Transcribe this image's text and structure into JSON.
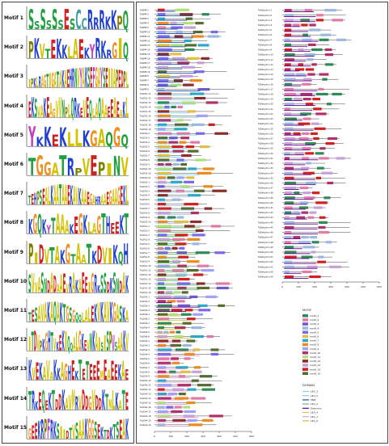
{
  "motif_logos": [
    {
      "label": "Motif 1",
      "text": "SSSSSSESCCRRRKKPQ"
    },
    {
      "label": "Motif 2",
      "text": "PKVTEKKLAEKYRKRGIQ"
    },
    {
      "label": "Motif 3",
      "text": "IPKLRAGTIGATAKAEHRNVYAKSEFGAYSEIIAPEDPL"
    },
    {
      "label": "Motif 4",
      "text": "EKSVAKEAGVVNPLQRKEVEQLAQAAEEAEAKL"
    },
    {
      "label": "Motif 5",
      "text": "YKKEKLLKGAQGQ"
    },
    {
      "label": "Motif 6",
      "text": "TGGATRPVEPINV"
    },
    {
      "label": "Motif 7",
      "text": "TEHPSEALKAATAAEKAVKAAEGAHRAAEGAAGEKL"
    },
    {
      "label": "Motif 8",
      "text": "KGQKYTAAAKEGKLAGTHEEKT"
    },
    {
      "label": "Motif 9",
      "text": "PIDVTAKGTAATKDVIKQH"
    },
    {
      "label": "Motif 10",
      "text": "SVVASNDADAAEVRAKAEEIGRKSSDKSNDAK"
    },
    {
      "label": "Motif 11",
      "text": "TESAVAKAQAKTGSGQQLALEKVKAVKGASKA"
    },
    {
      "label": "Motif 12",
      "text": "ITDVPKGHTVKEKIQQALGKEVNKAISISPWSAAKV"
    },
    {
      "label": "Motif 13",
      "text": "KVEKAVAKKAGHEKTETEEEMEAEEKAE"
    },
    {
      "label": "Motif 14",
      "text": "TRKEQEKTDDKAVMRVDDGVDDKTMLKATE"
    },
    {
      "label": "Motif 15",
      "text": "GEEKRPFRKSIIDTVSAAKGGSEKTDKTSEAK"
    }
  ],
  "left_gene_names": [
    "TaSMP-1",
    "TaSMP-2",
    "TaSMP-3",
    "TaSMP-4",
    "TaSMP-5",
    "TaSMP-10",
    "TaSMP-11",
    "TaSMP-12",
    "TaSMP-13",
    "TaSMP-14",
    "TaSMP-15",
    "TaSMP-16",
    "TaSMP-17",
    "TaSMP-18",
    "TaSMP-19",
    "TaSMP-6",
    "TaSMP-7",
    "TaSMP-8",
    "TaSMP-9",
    "TaLEA2-11",
    "TaLEA2-12",
    "TaLEA2-13",
    "TaLEA2-14",
    "TaLEA2-15",
    "TaLEA2-16",
    "TaLEA2-17",
    "TaLEA2-18",
    "TaLEA2-19",
    "TaLEA2-2",
    "TaLEA2-3",
    "TaLEA2-4",
    "TaLEA2-5",
    "TaLEA2-6",
    "TaLEA2-7",
    "TaLEA2-8",
    "TaLEA2-9",
    "TaLEA2-10",
    "TaLEA2-20",
    "TaLEA2-21",
    "TaLEA3-1",
    "TaLEA3-2",
    "TaLEA3-3",
    "TaLEA3-4",
    "TaLEA3-5",
    "TaLEA3-6",
    "TaLEA3-7",
    "TaLEA3-8",
    "TaLEA3-9",
    "TaLEA3-10",
    "TaLEA1-1",
    "TaLEA1-2",
    "TaLEA1-3",
    "TaLEA1-4",
    "TaLEA1-5",
    "TaLEA1-6",
    "TaLEA1-7",
    "TaLEA1-8",
    "TaLEA1-9",
    "TaLEA1-10",
    "TaLEA1-11",
    "TaLEA1-12",
    "TaLEA1-13",
    "TaLEA1-14",
    "TaLEA1-15",
    "TaLEA1-16",
    "TaLEA5-1",
    "TaLEA5-2",
    "TaLEA5-3",
    "TaLEA5-4",
    "TaLEA6-1",
    "TaLEA6-2",
    "TaLEA6-3",
    "TaLEA6-4",
    "TaLEA6-5",
    "TaLEA6-6",
    "TaLEA4-1",
    "TaLEA4-2",
    "TaLEA4-3",
    "TaLEA4-4",
    "TaLEA4-5",
    "TaLEA4-6",
    "TaLEA4-7",
    "TaLEA4-8",
    "TaLEA4-9",
    "TaLEA4-10",
    "TaLEA4-11",
    "TaLEA4-12",
    "TaLEA4-13",
    "TaLEA4-14",
    "TaLEA4-15",
    "TaLEA4-16",
    "TaLEA4-17",
    "TaLEA4-18",
    "TaLEA4-19",
    "TaLEA4-20"
  ],
  "right_gene_names": [
    "TaDehydrin-1",
    "TaDehydrin-2",
    "TaDehydrin-3",
    "TaDehydrin-4",
    "TaDehydrin-5",
    "TaDehydrin-6",
    "TaDehydrin-7",
    "TaDehydrin-8",
    "TaDehydrin-9",
    "TaDehydrin-10",
    "TaDehydrin-11",
    "TaDehydrin-12",
    "TaDehydrin-13",
    "TaDehydrin-14",
    "TaDehydrin-15",
    "TaDehydrin-16",
    "TaDehydrin-17",
    "TaDehydrin-18",
    "TaDehydrin-19",
    "TaDehydrin-20",
    "TaDehydrin-21",
    "TaDehydrin-22",
    "TaDehydrin-23",
    "TaDehydrin-24",
    "TaDehydrin-25",
    "TaDehydrin-26",
    "TaDehydrin-27",
    "TaDehydrin-28",
    "TaDehydrin-29",
    "TaDehydrin-30",
    "TaDehydrin-31",
    "TaDehydrin-32",
    "TaDehydrin-33",
    "TaDehydrin-34",
    "TaDehydrin-35",
    "TaDehydrin-36",
    "TaDehydrin-37",
    "TaDehydrin-38",
    "TaDehydrin-39",
    "TaDehydrin-40",
    "TaDehydrin-41",
    "TaDehydrin-42",
    "TaDehydrin-43",
    "TaDehydrin-44",
    "TaDehydrin-45",
    "TaDehydrin-46",
    "TaDehydrin-47",
    "TaDehydrin-48",
    "TaDehydrin-49",
    "TaDehydrin-50",
    "TaDehydrin-51",
    "TaDehydrin-52",
    "TaDehydrin-53",
    "TaDehydrin-54",
    "TaDehydrin-55"
  ],
  "axis_left_ticks": [
    "0",
    "100",
    "200",
    "300",
    "400",
    "500",
    "600"
  ],
  "axis_right_ticks": [
    "0",
    "100",
    "200",
    "300",
    "400",
    "500",
    "600"
  ],
  "legend_motif": {
    "title": "MOTIF",
    "items": [
      {
        "label": "motif_1",
        "color": "#2e8b57"
      },
      {
        "label": "motif_2",
        "color": "#e07aa8"
      },
      {
        "label": "motif_3",
        "color": "#6a5acd"
      },
      {
        "label": "motif_4",
        "color": "#9ab8e0"
      },
      {
        "label": "motif_5",
        "color": "#7b68ee"
      },
      {
        "label": "motif_6",
        "color": "#e0c040"
      },
      {
        "label": "motif_7",
        "color": "#2aa8c8"
      },
      {
        "label": "motif_8",
        "color": "#f08a1c"
      },
      {
        "label": "motif_9",
        "color": "#a0a0ff"
      },
      {
        "label": "motif_10",
        "color": "#b0306a"
      },
      {
        "label": "motif_11",
        "color": "#b0e07a"
      },
      {
        "label": "motif_12",
        "color": "#8b2d2d"
      },
      {
        "label": "motif_13",
        "color": "#c8a0d8"
      },
      {
        "label": "motif_14",
        "color": "#d02020"
      },
      {
        "label": "motif_15",
        "color": "#556b2f"
      }
    ]
  },
  "legend_domain": {
    "title": "DOMAIN",
    "items": [
      {
        "label": "LEA_3",
        "color": "#88d0e8"
      },
      {
        "label": "LEA_5",
        "color": "#a8c8e8"
      },
      {
        "label": "SMP",
        "color": "#2050a0"
      },
      {
        "label": "LEA_2",
        "color": "#60c060"
      },
      {
        "label": "Dehydrin",
        "color": "#600090"
      },
      {
        "label": "LEA_4",
        "color": "#d8c850"
      },
      {
        "label": "LEA_1",
        "color": "#e0a0d0"
      },
      {
        "label": "LEA_6",
        "color": "#c0c030"
      }
    ]
  }
}
